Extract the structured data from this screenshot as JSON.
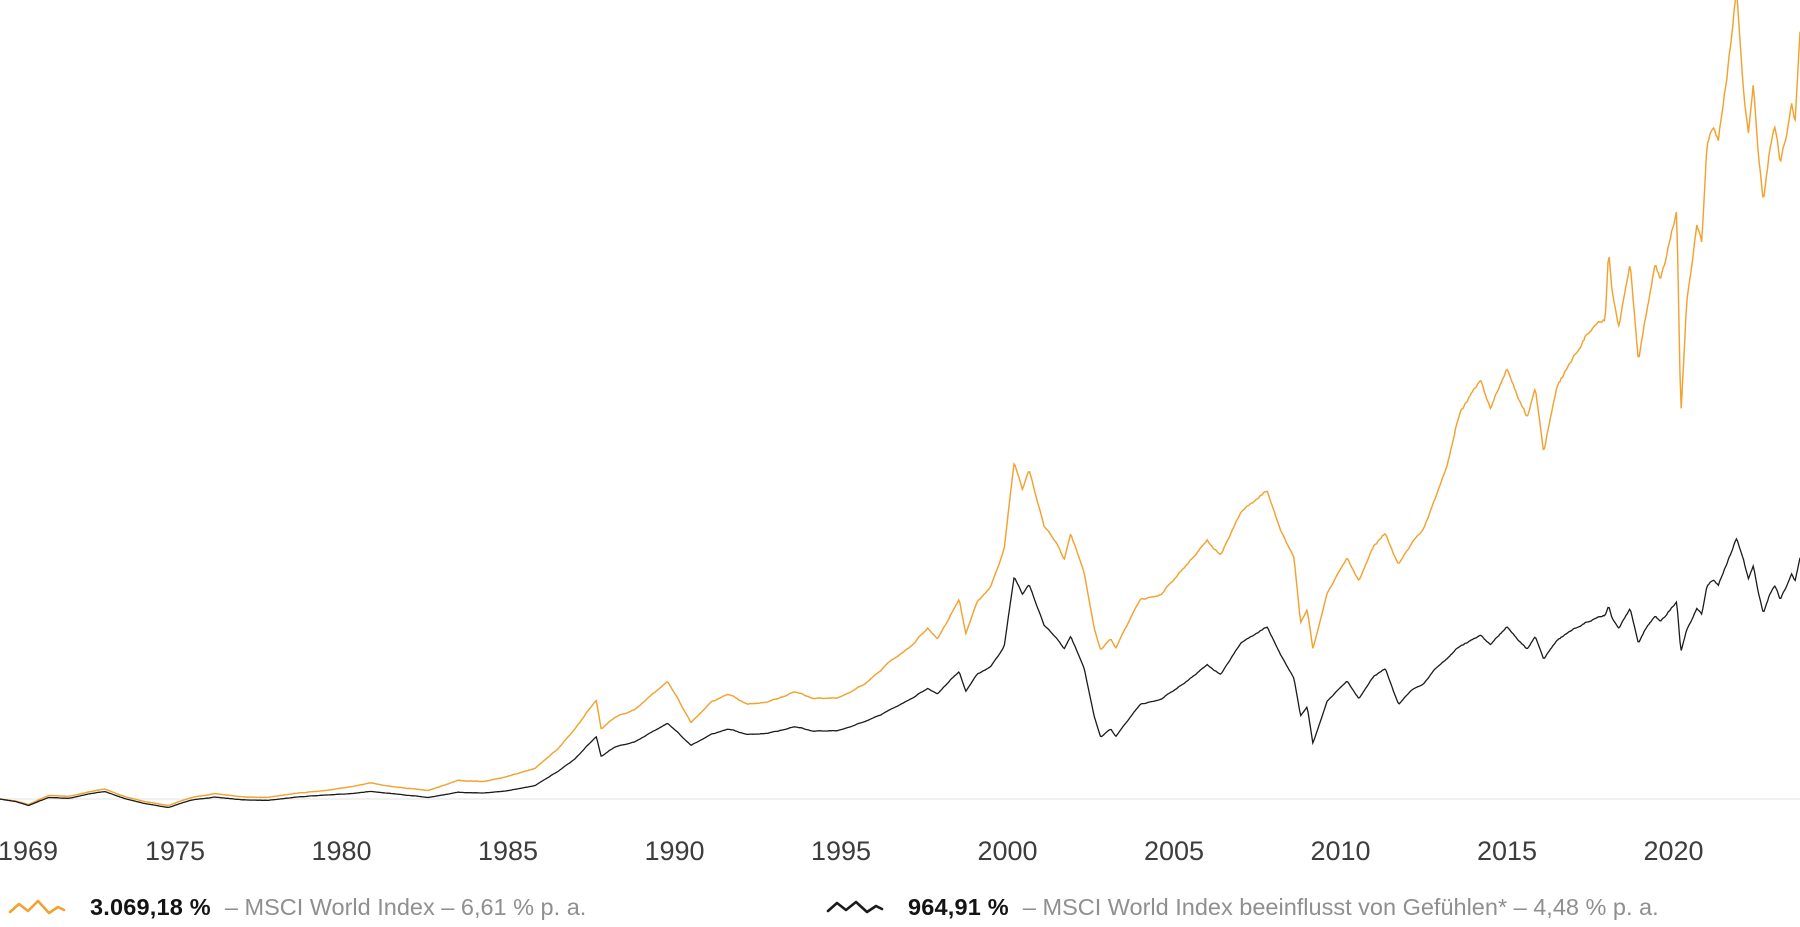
{
  "colors": {
    "orange_series": "#F2A231",
    "black_series": "#1b1b1b",
    "baseline": "#e3e3e3",
    "axis_text": "#3d3d3d",
    "legend_value_text": "#141414",
    "legend_desc_text": "#8f8f8f",
    "background": "#ffffff"
  },
  "legend": {
    "entries": [
      {
        "icon": "orange-wavy-line-icon",
        "value": "3.069,18 %",
        "description": "– MSCI World Index – 6,61 % p. a."
      },
      {
        "icon": "black-wavy-line-icon",
        "value": "964,91 %",
        "description": "– MSCI World Index beeinflusst von Gefühlen* – 4,48 % p. a."
      }
    ]
  },
  "chart_data": {
    "type": "line",
    "title": "",
    "xlabel": "",
    "ylabel": "",
    "grid": "zero-baseline-only",
    "legend_position": "bottom",
    "x_axis": {
      "ticks": [
        {
          "label": "1969",
          "year": 1969
        },
        {
          "label": "1975",
          "year": 1975
        },
        {
          "label": "1980",
          "year": 1980
        },
        {
          "label": "1985",
          "year": 1985
        },
        {
          "label": "1990",
          "year": 1990
        },
        {
          "label": "1995",
          "year": 1995
        },
        {
          "label": "2000",
          "year": 2000
        },
        {
          "label": "2005",
          "year": 2005
        },
        {
          "label": "2010",
          "year": 2010
        },
        {
          "label": "2015",
          "year": 2015
        },
        {
          "label": "2020",
          "year": 2020
        }
      ],
      "range_years": [
        1969.74,
        2023.8
      ]
    },
    "y_axis": {
      "unit": "percent cumulative return",
      "baseline_pct": 0,
      "top_visible_pct": 3196,
      "bottom_visible_pct": -512
    },
    "series": [
      {
        "name": "MSCI World Index",
        "color": "#F2A231",
        "final_value_label": "3.069,18 %",
        "final_pct": 3069.18,
        "annual_return_label": "6,61 % p. a.",
        "points": [
          [
            1969.74,
            0
          ],
          [
            1970.2,
            -8
          ],
          [
            1970.6,
            -22
          ],
          [
            1971.2,
            14
          ],
          [
            1971.8,
            10
          ],
          [
            1972.4,
            28
          ],
          [
            1972.9,
            40
          ],
          [
            1973.5,
            10
          ],
          [
            1974.1,
            -10
          ],
          [
            1974.8,
            -26
          ],
          [
            1975.5,
            6
          ],
          [
            1976.2,
            22
          ],
          [
            1977,
            10
          ],
          [
            1977.8,
            6
          ],
          [
            1978.8,
            26
          ],
          [
            1979.5,
            34
          ],
          [
            1980.3,
            50
          ],
          [
            1980.9,
            64
          ],
          [
            1981.5,
            50
          ],
          [
            1982.6,
            34
          ],
          [
            1983.5,
            76
          ],
          [
            1984.3,
            70
          ],
          [
            1985,
            92
          ],
          [
            1985.8,
            120
          ],
          [
            1986.5,
            200
          ],
          [
            1987,
            280
          ],
          [
            1987.65,
            396
          ],
          [
            1987.8,
            280
          ],
          [
            1988.2,
            330
          ],
          [
            1988.8,
            360
          ],
          [
            1989.8,
            472
          ],
          [
            1990.5,
            308
          ],
          [
            1991.1,
            390
          ],
          [
            1991.6,
            420
          ],
          [
            1992.2,
            376
          ],
          [
            1992.8,
            390
          ],
          [
            1993.6,
            430
          ],
          [
            1994.2,
            400
          ],
          [
            1994.9,
            402
          ],
          [
            1995.7,
            460
          ],
          [
            1996.4,
            540
          ],
          [
            1997.1,
            610
          ],
          [
            1997.6,
            680
          ],
          [
            1997.9,
            640
          ],
          [
            1998.3,
            740
          ],
          [
            1998.55,
            800
          ],
          [
            1998.75,
            660
          ],
          [
            1999.1,
            790
          ],
          [
            1999.5,
            850
          ],
          [
            1999.9,
            1000
          ],
          [
            2000.2,
            1348
          ],
          [
            2000.45,
            1240
          ],
          [
            2000.65,
            1320
          ],
          [
            2001.1,
            1100
          ],
          [
            2001.5,
            1020
          ],
          [
            2001.7,
            956
          ],
          [
            2001.9,
            1060
          ],
          [
            2002.3,
            900
          ],
          [
            2002.6,
            680
          ],
          [
            2002.8,
            592
          ],
          [
            2003.1,
            640
          ],
          [
            2003.25,
            604
          ],
          [
            2004,
            800
          ],
          [
            2004.6,
            820
          ],
          [
            2005.3,
            920
          ],
          [
            2006,
            1040
          ],
          [
            2006.4,
            980
          ],
          [
            2007,
            1140
          ],
          [
            2007.8,
            1236
          ],
          [
            2008.2,
            1080
          ],
          [
            2008.6,
            960
          ],
          [
            2008.8,
            700
          ],
          [
            2009,
            760
          ],
          [
            2009.17,
            604
          ],
          [
            2009.6,
            820
          ],
          [
            2010.2,
            960
          ],
          [
            2010.55,
            870
          ],
          [
            2011,
            1010
          ],
          [
            2011.35,
            1060
          ],
          [
            2011.75,
            944
          ],
          [
            2012.1,
            1010
          ],
          [
            2012.5,
            1080
          ],
          [
            2012.84,
            1200
          ],
          [
            2013.2,
            1330
          ],
          [
            2013.6,
            1544
          ],
          [
            2014,
            1636
          ],
          [
            2014.2,
            1688
          ],
          [
            2014.5,
            1568
          ],
          [
            2015,
            1724
          ],
          [
            2015.6,
            1528
          ],
          [
            2015.85,
            1644
          ],
          [
            2016.1,
            1388
          ],
          [
            2016.5,
            1664
          ],
          [
            2017,
            1768
          ],
          [
            2017.5,
            1868
          ],
          [
            2017.95,
            1904
          ],
          [
            2018.05,
            2184
          ],
          [
            2018.15,
            2024
          ],
          [
            2018.35,
            1880
          ],
          [
            2018.7,
            2136
          ],
          [
            2018.95,
            1744
          ],
          [
            2019.2,
            1956
          ],
          [
            2019.45,
            2136
          ],
          [
            2019.6,
            2076
          ],
          [
            2020.1,
            2356
          ],
          [
            2020.22,
            1536
          ],
          [
            2020.4,
            2000
          ],
          [
            2020.7,
            2290
          ],
          [
            2020.85,
            2230
          ],
          [
            2021,
            2610
          ],
          [
            2021.2,
            2700
          ],
          [
            2021.35,
            2650
          ],
          [
            2021.6,
            2880
          ],
          [
            2021.9,
            3240
          ],
          [
            2022,
            3030
          ],
          [
            2022.1,
            2840
          ],
          [
            2022.25,
            2660
          ],
          [
            2022.4,
            2850
          ],
          [
            2022.55,
            2560
          ],
          [
            2022.7,
            2380
          ],
          [
            2022.9,
            2600
          ],
          [
            2023.05,
            2680
          ],
          [
            2023.2,
            2520
          ],
          [
            2023.4,
            2650
          ],
          [
            2023.55,
            2780
          ],
          [
            2023.65,
            2700
          ],
          [
            2023.8,
            3069.18
          ]
        ]
      },
      {
        "name": "MSCI World Index beeinflusst von Gefühlen*",
        "color": "#1b1b1b",
        "final_value_label": "964,91 %",
        "final_pct": 964.91,
        "annual_return_label": "4,48 % p. a.",
        "points": [
          [
            1969.74,
            0
          ],
          [
            1970.2,
            -10
          ],
          [
            1970.6,
            -26
          ],
          [
            1971.2,
            6
          ],
          [
            1971.8,
            2
          ],
          [
            1972.4,
            20
          ],
          [
            1972.9,
            30
          ],
          [
            1973.5,
            2
          ],
          [
            1974.1,
            -18
          ],
          [
            1974.8,
            -34
          ],
          [
            1975.5,
            -4
          ],
          [
            1976.2,
            8
          ],
          [
            1977,
            -2
          ],
          [
            1977.8,
            -6
          ],
          [
            1978.8,
            10
          ],
          [
            1979.5,
            16
          ],
          [
            1980.3,
            22
          ],
          [
            1980.9,
            30
          ],
          [
            1981.5,
            22
          ],
          [
            1982.6,
            6
          ],
          [
            1983.5,
            28
          ],
          [
            1984.3,
            24
          ],
          [
            1985,
            34
          ],
          [
            1985.8,
            52
          ],
          [
            1986.5,
            110
          ],
          [
            1987,
            160
          ],
          [
            1987.65,
            250
          ],
          [
            1987.8,
            170
          ],
          [
            1988.2,
            210
          ],
          [
            1988.8,
            230
          ],
          [
            1989.8,
            304
          ],
          [
            1990.5,
            216
          ],
          [
            1991.1,
            260
          ],
          [
            1991.6,
            280
          ],
          [
            1992.2,
            256
          ],
          [
            1992.8,
            264
          ],
          [
            1993.6,
            290
          ],
          [
            1994.2,
            270
          ],
          [
            1994.9,
            272
          ],
          [
            1995.7,
            310
          ],
          [
            1996.4,
            350
          ],
          [
            1997.1,
            400
          ],
          [
            1997.6,
            440
          ],
          [
            1997.9,
            420
          ],
          [
            1998.3,
            480
          ],
          [
            1998.55,
            510
          ],
          [
            1998.75,
            430
          ],
          [
            1999.1,
            500
          ],
          [
            1999.5,
            530
          ],
          [
            1999.9,
            610
          ],
          [
            2000.2,
            890
          ],
          [
            2000.45,
            820
          ],
          [
            2000.65,
            860
          ],
          [
            2001.1,
            700
          ],
          [
            2001.5,
            640
          ],
          [
            2001.7,
            600
          ],
          [
            2001.9,
            650
          ],
          [
            2002.3,
            520
          ],
          [
            2002.6,
            330
          ],
          [
            2002.8,
            245
          ],
          [
            2003.1,
            280
          ],
          [
            2003.25,
            250
          ],
          [
            2004,
            380
          ],
          [
            2004.6,
            400
          ],
          [
            2005.3,
            460
          ],
          [
            2006,
            540
          ],
          [
            2006.4,
            500
          ],
          [
            2007,
            620
          ],
          [
            2007.8,
            690
          ],
          [
            2008.2,
            580
          ],
          [
            2008.6,
            480
          ],
          [
            2008.8,
            330
          ],
          [
            2009,
            370
          ],
          [
            2009.17,
            224
          ],
          [
            2009.6,
            390
          ],
          [
            2010.2,
            470
          ],
          [
            2010.55,
            400
          ],
          [
            2011,
            490
          ],
          [
            2011.35,
            520
          ],
          [
            2011.75,
            380
          ],
          [
            2012.1,
            430
          ],
          [
            2012.5,
            460
          ],
          [
            2012.84,
            520
          ],
          [
            2013.2,
            560
          ],
          [
            2013.6,
            610
          ],
          [
            2014,
            640
          ],
          [
            2014.2,
            660
          ],
          [
            2014.5,
            620
          ],
          [
            2015,
            690
          ],
          [
            2015.6,
            600
          ],
          [
            2015.85,
            650
          ],
          [
            2016.1,
            560
          ],
          [
            2016.5,
            640
          ],
          [
            2017,
            680
          ],
          [
            2017.5,
            710
          ],
          [
            2017.95,
            730
          ],
          [
            2018.05,
            770
          ],
          [
            2018.15,
            720
          ],
          [
            2018.35,
            680
          ],
          [
            2018.7,
            760
          ],
          [
            2018.95,
            620
          ],
          [
            2019.2,
            690
          ],
          [
            2019.45,
            730
          ],
          [
            2019.6,
            710
          ],
          [
            2020.1,
            790
          ],
          [
            2020.22,
            590
          ],
          [
            2020.4,
            680
          ],
          [
            2020.7,
            760
          ],
          [
            2020.85,
            740
          ],
          [
            2021,
            850
          ],
          [
            2021.2,
            880
          ],
          [
            2021.35,
            860
          ],
          [
            2021.6,
            940
          ],
          [
            2021.9,
            1044
          ],
          [
            2022,
            1000
          ],
          [
            2022.1,
            960
          ],
          [
            2022.25,
            880
          ],
          [
            2022.4,
            930
          ],
          [
            2022.55,
            820
          ],
          [
            2022.7,
            740
          ],
          [
            2022.9,
            820
          ],
          [
            2023.05,
            850
          ],
          [
            2023.2,
            790
          ],
          [
            2023.4,
            850
          ],
          [
            2023.55,
            900
          ],
          [
            2023.65,
            870
          ],
          [
            2023.8,
            964.91
          ]
        ]
      }
    ]
  }
}
